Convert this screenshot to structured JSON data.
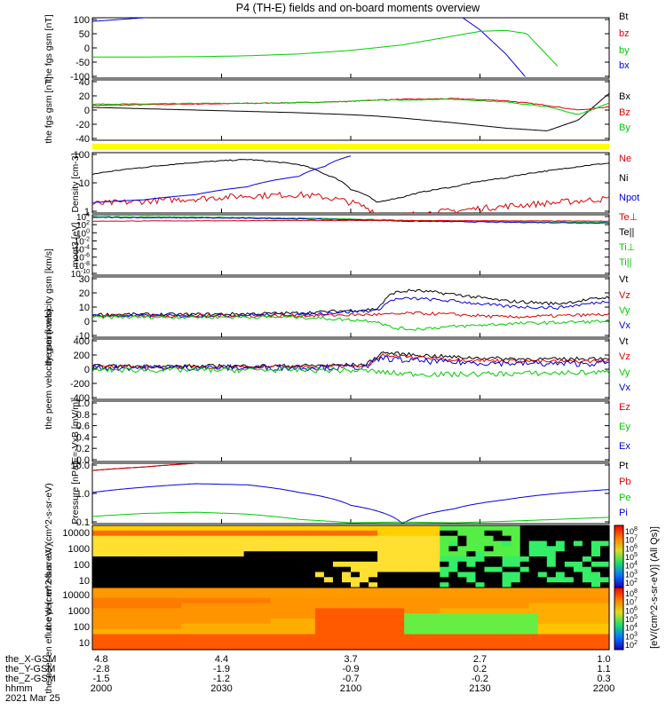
{
  "title": "P4 (TH-E) fields and on-board moments overview",
  "footer": {
    "row_labels": [
      "the_X-GSM",
      "the_Y-GSM",
      "the_Z-GSM",
      "hhmm",
      "2021 Mar 25"
    ],
    "columns": [
      [
        "4.8",
        "-2.8",
        "-1.5",
        "2000"
      ],
      [
        "4.4",
        "-1.9",
        "-1.2",
        "2030"
      ],
      [
        "3.7",
        "-0.9",
        "-0.7",
        "2100"
      ],
      [
        "2.7",
        "0.2",
        "-0.2",
        "2130"
      ],
      [
        "1.0",
        "1.1",
        "0.3",
        "2200"
      ]
    ]
  },
  "colorbar_label": "[eV/(cm^2-s-sr-eV)] (All Qs)]",
  "colors": {
    "black": "#000000",
    "red": "#dd0000",
    "green": "#00cc00",
    "blue": "#0000dd",
    "yellow": "#ffff00"
  },
  "chart_data": [
    {
      "type": "line",
      "ylabel": "the fgs gsm [nT]",
      "yticks": [
        "100",
        "50",
        "0",
        "-50",
        "-100"
      ],
      "ylim": [
        -100,
        100
      ],
      "legend": [
        {
          "label": "Bt",
          "color": "#000000"
        },
        {
          "label": "bz",
          "color": "#dd0000"
        },
        {
          "label": "by",
          "color": "#00cc00"
        },
        {
          "label": "bx",
          "color": "#0000dd"
        }
      ],
      "x": [
        0,
        10,
        20,
        30,
        40,
        50,
        60,
        70,
        75,
        80,
        84,
        90,
        100
      ],
      "series": [
        {
          "color": "#0000dd",
          "values": [
            88,
            100,
            112,
            120,
            125,
            130,
            140,
            120,
            60,
            -20,
            -100,
            null,
            null
          ]
        },
        {
          "color": "#00cc00",
          "values": [
            -30,
            -30,
            -29,
            -26,
            -20,
            -8,
            10,
            40,
            55,
            58,
            48,
            -60,
            null
          ]
        }
      ]
    },
    {
      "type": "line",
      "ylabel": "the fgs gsm [nT]",
      "yticks": [
        "40",
        "20",
        "0",
        "-20",
        "-40"
      ],
      "ylim": [
        -50,
        40
      ],
      "legend": [
        {
          "label": "Bx",
          "color": "#000000"
        },
        {
          "label": "Bz",
          "color": "#dd0000"
        },
        {
          "label": "By",
          "color": "#00cc00"
        }
      ],
      "x": [
        0,
        10,
        20,
        30,
        40,
        50,
        55,
        60,
        70,
        80,
        88,
        94,
        100
      ],
      "series": [
        {
          "color": "#000000",
          "values": [
            -1,
            -3,
            -5,
            -7,
            -9,
            -12,
            -14,
            -17,
            -24,
            -32,
            -36,
            -20,
            20
          ]
        },
        {
          "color": "#dd0000",
          "values": [
            2,
            3,
            4,
            5,
            6,
            8,
            10,
            11,
            12,
            9,
            2,
            -5,
            0
          ]
        },
        {
          "color": "#00cc00",
          "values": [
            4,
            4,
            5,
            5,
            6,
            8,
            10,
            10,
            11,
            7,
            0,
            -12,
            5
          ]
        }
      ],
      "noise": [
        0,
        0.6,
        0.6
      ]
    },
    {
      "type": "line",
      "ylabel": "Density [cm-3]",
      "yscale": "log",
      "yticks": [
        "100",
        "10",
        "1"
      ],
      "ylim": [
        1,
        200
      ],
      "legend": [
        {
          "label": "Ne",
          "color": "#dd0000"
        },
        {
          "label": "Ni",
          "color": "#000000"
        },
        {
          "label": "Npot",
          "color": "#0000dd"
        }
      ],
      "x": [
        0,
        10,
        20,
        30,
        40,
        45,
        50,
        55,
        60,
        70,
        80,
        90,
        100
      ],
      "series": [
        {
          "color": "#000000",
          "values": [
            30,
            55,
            85,
            110,
            70,
            30,
            8,
            2.5,
            4,
            10,
            22,
            45,
            80
          ]
        },
        {
          "color": "#dd0000",
          "values": [
            2.2,
            2.8,
            3.5,
            4.5,
            5,
            4,
            2.5,
            1,
            0.8,
            1.2,
            1.8,
            2.5,
            3.5
          ]
        },
        {
          "color": "#0000dd",
          "values": [
            2.5,
            3.2,
            5,
            10,
            25,
            60,
            150,
            null,
            null,
            null,
            null,
            null,
            null
          ]
        }
      ],
      "noise": [
        0.02,
        0.12,
        0
      ]
    },
    {
      "type": "line",
      "ylabel": "moqt3 [eV]",
      "yscale": "log",
      "yticks": [
        "10^4",
        "10^2",
        "10^0",
        "10^-2",
        "10^-4",
        "10^-6",
        "10^-8",
        "10^-10"
      ],
      "ylim": [
        1e-11,
        100000.0
      ],
      "legend": [
        {
          "label": "Te⊥",
          "color": "#dd0000"
        },
        {
          "label": "Te||",
          "color": "#000000"
        },
        {
          "label": "Ti⊥",
          "color": "#00cc00"
        },
        {
          "label": "Ti||",
          "color": "#00cc00"
        }
      ],
      "x": [
        0,
        20,
        40,
        60,
        80,
        100
      ],
      "series": [
        {
          "color": "#00cc00",
          "values": [
            30000,
            25000,
            12000,
            3000,
            1500,
            900
          ]
        },
        {
          "color": "#0000dd",
          "values": [
            20000,
            15000,
            8000,
            2000,
            1000,
            600
          ]
        },
        {
          "color": "#dd0000",
          "values": [
            2000,
            2500,
            3000,
            3000,
            2500,
            2000
          ]
        }
      ],
      "noise": [
        0.1,
        0.1,
        0.05
      ]
    },
    {
      "type": "line",
      "ylabel": "the peim velocity gsm [km/s]",
      "yticks": [
        "30",
        "20",
        "10",
        "0",
        "-10"
      ],
      "ylim": [
        -15,
        30
      ],
      "legend": [
        {
          "label": "Vt",
          "color": "#000000"
        },
        {
          "label": "Vz",
          "color": "#dd0000"
        },
        {
          "label": "Vy",
          "color": "#00cc00"
        },
        {
          "label": "Vx",
          "color": "#0000dd"
        }
      ],
      "x": [
        0,
        20,
        40,
        55,
        58,
        62,
        70,
        80,
        90,
        100
      ],
      "series": [
        {
          "color": "#000000",
          "values": [
            2,
            2,
            3,
            6,
            18,
            20,
            17,
            12,
            10,
            15
          ]
        },
        {
          "color": "#0000dd",
          "values": [
            1,
            1,
            2,
            5,
            13,
            14,
            12,
            8,
            7,
            12
          ]
        },
        {
          "color": "#dd0000",
          "values": [
            1,
            1,
            1,
            2,
            2,
            3,
            2,
            0,
            1,
            2
          ]
        },
        {
          "color": "#00cc00",
          "values": [
            0,
            0,
            0,
            -3,
            -8,
            -9,
            -7,
            -5,
            -4,
            -3
          ]
        }
      ],
      "noise": [
        1.2,
        1.2,
        1.2,
        1.2
      ]
    },
    {
      "type": "line",
      "ylabel": "the peem velocity gsm [km/s]",
      "yticks": [
        "400",
        "200",
        "0",
        "-200",
        "-400"
      ],
      "ylim": [
        -400,
        400
      ],
      "legend": [
        {
          "label": "Vt",
          "color": "#000000"
        },
        {
          "label": "Vz",
          "color": "#dd0000"
        },
        {
          "label": "Vy",
          "color": "#00cc00"
        },
        {
          "label": "Vx",
          "color": "#0000dd"
        }
      ],
      "x": [
        0,
        20,
        40,
        53,
        56,
        60,
        70,
        80,
        90,
        100
      ],
      "series": [
        {
          "color": "#000000",
          "values": [
            40,
            40,
            45,
            60,
            220,
            200,
            160,
            140,
            130,
            150
          ]
        },
        {
          "color": "#dd0000",
          "values": [
            30,
            30,
            35,
            40,
            180,
            170,
            130,
            110,
            100,
            110
          ]
        },
        {
          "color": "#0000dd",
          "values": [
            20,
            20,
            20,
            30,
            150,
            120,
            90,
            80,
            70,
            80
          ]
        },
        {
          "color": "#00cc00",
          "values": [
            -10,
            -10,
            -10,
            -20,
            -40,
            -60,
            -70,
            -60,
            -50,
            -40
          ]
        }
      ],
      "noise": [
        25,
        25,
        40,
        35
      ]
    },
    {
      "type": "line",
      "ylabel": "E=-VxB [mV/m]",
      "yticks": [
        "1.0",
        "0.8",
        "0.6",
        "0.4",
        "0.2",
        "0.0"
      ],
      "ylim": [
        0,
        1
      ],
      "legend": [
        {
          "label": "Ez",
          "color": "#dd0000"
        },
        {
          "label": "Ey",
          "color": "#00cc00"
        },
        {
          "label": "Ex",
          "color": "#0000dd"
        }
      ],
      "x": [],
      "series": []
    },
    {
      "type": "line",
      "ylabel": "Pressure [nPa]",
      "yscale": "log",
      "yticks": [
        "10.0",
        "1.0",
        "0.1"
      ],
      "ylim": [
        0.06,
        20
      ],
      "legend": [
        {
          "label": "Pt",
          "color": "#000000"
        },
        {
          "label": "Pb",
          "color": "#dd0000"
        },
        {
          "label": "Pe",
          "color": "#00cc00"
        },
        {
          "label": "Pi",
          "color": "#0000dd"
        }
      ],
      "x": [
        0,
        10,
        20,
        30,
        40,
        50,
        60,
        70,
        80,
        90,
        100
      ],
      "series": [
        {
          "color": "#000000",
          "values": [
            10,
            14,
            20,
            30,
            null,
            null,
            null,
            null,
            null,
            null,
            null
          ]
        },
        {
          "color": "#dd0000",
          "values": [
            10,
            14,
            20,
            30,
            null,
            null,
            null,
            null,
            null,
            null,
            null
          ]
        },
        {
          "color": "#0000dd",
          "values": [
            1.2,
            2,
            2.8,
            2.5,
            1.2,
            0.35,
            0.06,
            0.25,
            0.6,
            1.1,
            1.6
          ]
        },
        {
          "color": "#00cc00",
          "values": [
            0.12,
            0.16,
            0.18,
            0.15,
            0.09,
            0.065,
            0.07,
            0.065,
            0.075,
            0.09,
            0.11
          ]
        }
      ]
    },
    {
      "type": "heatmap",
      "ylabel": "the peir en eflux eV/ (cm^2-s-sr-eV)",
      "yticks": [
        "10000",
        "1000",
        "100",
        "10"
      ]
    },
    {
      "type": "heatmap",
      "ylabel": "the peer en eflux eV/ (cm^2-s-sr-eV)",
      "yticks": [
        "10000",
        "1000",
        "100",
        "10"
      ]
    }
  ],
  "colorbar_ticks": [
    [
      "10^8",
      "10^7",
      "10^6",
      "10^5",
      "10^4",
      "10^3",
      "10^2"
    ],
    [
      "10^8",
      "10^7",
      "10^6",
      "10^5",
      "10^4",
      "10^3",
      "10^2"
    ]
  ]
}
